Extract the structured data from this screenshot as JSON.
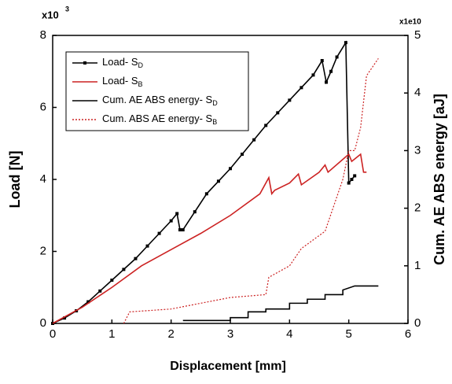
{
  "chart_data": {
    "type": "line",
    "xlabel": "Displacement [mm]",
    "ylabel": "Load [N]",
    "y2label": "Cum. AE ABS energy [aJ]",
    "y_multiplier": "x10",
    "y_multiplier_exp": "3",
    "y2_multiplier": "x1e10",
    "xlim": [
      0,
      6
    ],
    "xticks": [
      0,
      1,
      2,
      3,
      4,
      5,
      6
    ],
    "ylim": [
      0,
      8
    ],
    "yticks": [
      0,
      2,
      4,
      6,
      8
    ],
    "y2lim": [
      0,
      5
    ],
    "y2ticks": [
      0,
      1,
      2,
      3,
      4,
      5
    ],
    "series": [
      {
        "name": "Load- S",
        "name_sub": "D",
        "color": "#000000",
        "style": "solid-markers",
        "x": [
          0,
          0.2,
          0.4,
          0.6,
          0.8,
          1.0,
          1.2,
          1.4,
          1.6,
          1.8,
          2.0,
          2.1,
          2.15,
          2.2,
          2.4,
          2.6,
          2.8,
          3.0,
          3.2,
          3.4,
          3.6,
          3.8,
          4.0,
          4.2,
          4.4,
          4.55,
          4.62,
          4.7,
          4.8,
          4.95,
          5.0,
          5.05,
          5.1
        ],
        "values": [
          0,
          0.15,
          0.35,
          0.6,
          0.9,
          1.2,
          1.5,
          1.8,
          2.15,
          2.5,
          2.85,
          3.05,
          2.6,
          2.6,
          3.1,
          3.6,
          3.95,
          4.3,
          4.7,
          5.1,
          5.5,
          5.85,
          6.2,
          6.55,
          6.9,
          7.3,
          6.7,
          7.0,
          7.4,
          7.8,
          3.9,
          4.0,
          4.1
        ]
      },
      {
        "name": "Load- S",
        "name_sub": "B",
        "color": "#cc2222",
        "style": "solid",
        "x": [
          0,
          0.5,
          1.0,
          1.5,
          2.0,
          2.5,
          3.0,
          3.5,
          3.65,
          3.7,
          3.75,
          4.0,
          4.15,
          4.2,
          4.5,
          4.6,
          4.65,
          5.0,
          5.05,
          5.2,
          5.25,
          5.3
        ],
        "values": [
          0,
          0.45,
          1.0,
          1.6,
          2.05,
          2.5,
          3.0,
          3.6,
          4.05,
          3.6,
          3.7,
          3.9,
          4.15,
          3.85,
          4.2,
          4.4,
          4.2,
          4.7,
          4.5,
          4.7,
          4.2,
          4.2
        ]
      },
      {
        "name": "Cum. AE ABS energy- S",
        "name_sub": "D",
        "color": "#000000",
        "style": "solid",
        "axis": "y2",
        "x": [
          2.2,
          3.0,
          3.0,
          3.3,
          3.3,
          3.6,
          3.6,
          4.0,
          4.0,
          4.3,
          4.3,
          4.6,
          4.6,
          4.9,
          4.9,
          5.1,
          5.5
        ],
        "values": [
          0.05,
          0.05,
          0.1,
          0.1,
          0.2,
          0.2,
          0.25,
          0.25,
          0.35,
          0.35,
          0.42,
          0.42,
          0.5,
          0.5,
          0.58,
          0.65,
          0.65
        ]
      },
      {
        "name": "Cum. ABS AE energy- S",
        "name_sub": "B",
        "color": "#cc2222",
        "style": "dotted",
        "axis": "y2",
        "x": [
          1.2,
          1.3,
          2.0,
          2.5,
          3.0,
          3.6,
          3.65,
          4.0,
          4.2,
          4.6,
          4.8,
          4.9,
          5.0,
          5.1,
          5.2,
          5.3,
          5.5
        ],
        "values": [
          0,
          0.2,
          0.25,
          0.35,
          0.45,
          0.5,
          0.8,
          1.0,
          1.3,
          1.6,
          2.2,
          2.5,
          3.0,
          3.0,
          3.4,
          4.3,
          4.6
        ]
      }
    ]
  }
}
